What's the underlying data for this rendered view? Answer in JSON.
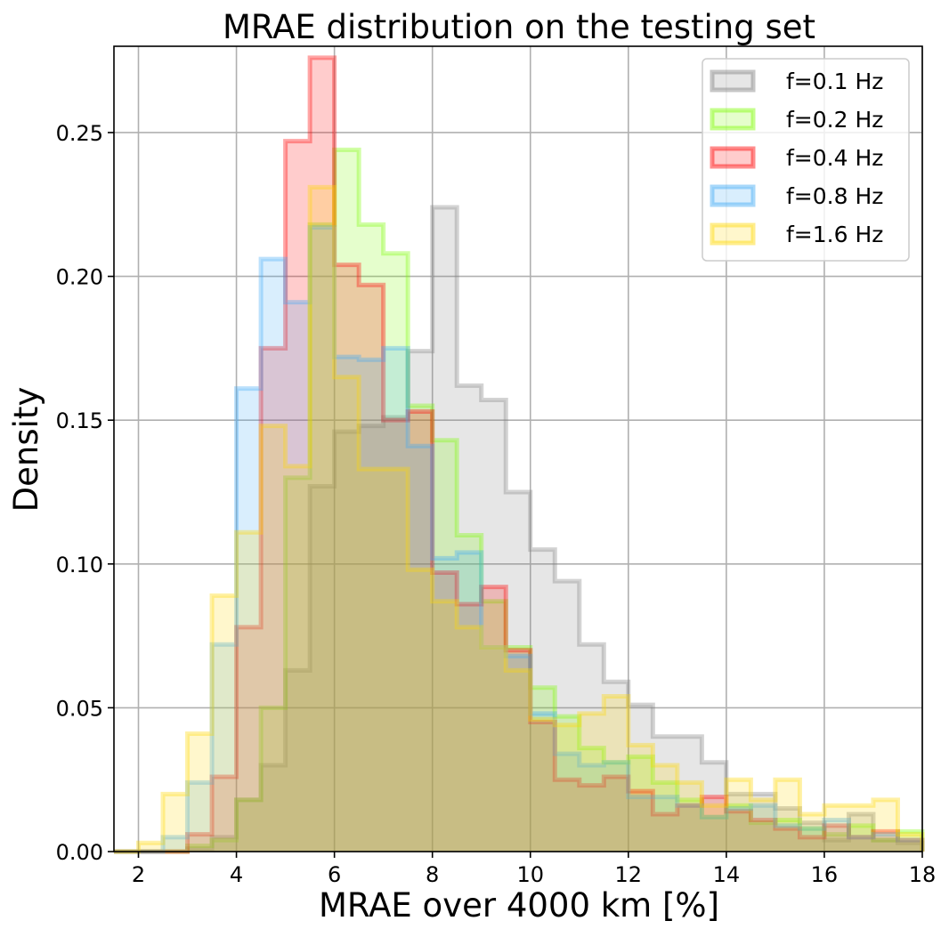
{
  "chart_data": {
    "type": "histogram",
    "title": "MRAE distribution on the testing set",
    "xlabel": "MRAE over 4000 km [%]",
    "ylabel": "Density",
    "xlim": [
      1.5,
      18
    ],
    "ylim": [
      0,
      0.28
    ],
    "xticks": [
      2,
      4,
      6,
      8,
      10,
      12,
      14,
      16,
      18
    ],
    "xtick_labels": [
      "2",
      "4",
      "6",
      "8",
      "10",
      "12",
      "14",
      "16",
      "18"
    ],
    "yticks": [
      0.0,
      0.05,
      0.1,
      0.15,
      0.2,
      0.25
    ],
    "ytick_labels": [
      "0.00",
      "0.05",
      "0.10",
      "0.15",
      "0.20",
      "0.25"
    ],
    "grid": true,
    "legend_position": "top-right",
    "bin_width": 0.5,
    "series": [
      {
        "name": "f=0.1 Hz",
        "color": "#808080",
        "edges": [
          1.5,
          2.0,
          2.5,
          3.0,
          3.5,
          4.0,
          4.5,
          5.0,
          5.5,
          6.0,
          6.5,
          7.0,
          7.5,
          8.0,
          8.5,
          9.0,
          9.5,
          10.0,
          10.5,
          11.0,
          11.5,
          12.0,
          12.5,
          13.0,
          13.5,
          14.0,
          14.5,
          15.0,
          15.5,
          16.0,
          16.5,
          17.0,
          17.5,
          18.0
        ],
        "values": [
          0.0,
          0.0,
          0.0,
          0.001,
          0.005,
          0.018,
          0.03,
          0.063,
          0.127,
          0.146,
          0.148,
          0.151,
          0.174,
          0.224,
          0.162,
          0.157,
          0.125,
          0.105,
          0.094,
          0.072,
          0.059,
          0.051,
          0.04,
          0.04,
          0.031,
          0.02,
          0.02,
          0.015,
          0.01,
          0.004,
          0.013,
          0.004,
          0.003
        ]
      },
      {
        "name": "f=0.2 Hz",
        "color": "#7cfc00",
        "edges": [
          1.5,
          2.0,
          2.5,
          3.0,
          3.5,
          4.0,
          4.5,
          5.0,
          5.5,
          6.0,
          6.5,
          7.0,
          7.5,
          8.0,
          8.5,
          9.0,
          9.5,
          10.0,
          10.5,
          11.0,
          11.5,
          12.0,
          12.5,
          13.0,
          13.5,
          14.0,
          14.5,
          15.0,
          15.5,
          16.0,
          16.5,
          17.0,
          17.5,
          18.0
        ],
        "values": [
          0.0,
          0.0,
          0.0,
          0.002,
          0.004,
          0.018,
          0.05,
          0.13,
          0.218,
          0.244,
          0.218,
          0.208,
          0.155,
          0.143,
          0.11,
          0.087,
          0.071,
          0.057,
          0.047,
          0.036,
          0.031,
          0.033,
          0.024,
          0.018,
          0.012,
          0.016,
          0.01,
          0.011,
          0.008,
          0.006,
          0.009,
          0.004,
          0.007
        ]
      },
      {
        "name": "f=0.4 Hz",
        "color": "#ff0000",
        "edges": [
          1.5,
          2.0,
          2.5,
          3.0,
          3.5,
          4.0,
          4.5,
          5.0,
          5.5,
          6.0,
          6.5,
          7.0,
          7.5,
          8.0,
          8.5,
          9.0,
          9.5,
          10.0,
          10.5,
          11.0,
          11.5,
          12.0,
          12.5,
          13.0,
          13.5,
          14.0,
          14.5,
          15.0,
          15.5,
          16.0,
          16.5,
          17.0,
          17.5,
          18.0
        ],
        "values": [
          0.0,
          0.0,
          0.0,
          0.006,
          0.026,
          0.078,
          0.175,
          0.247,
          0.276,
          0.204,
          0.197,
          0.15,
          0.153,
          0.097,
          0.086,
          0.092,
          0.07,
          0.045,
          0.025,
          0.023,
          0.026,
          0.021,
          0.013,
          0.016,
          0.019,
          0.014,
          0.011,
          0.008,
          0.005,
          0.009,
          0.005,
          0.007,
          0.004
        ]
      },
      {
        "name": "f=0.8 Hz",
        "color": "#3fa9f5",
        "edges": [
          1.5,
          2.0,
          2.5,
          3.0,
          3.5,
          4.0,
          4.5,
          5.0,
          5.5,
          6.0,
          6.5,
          7.0,
          7.5,
          8.0,
          8.5,
          9.0,
          9.5,
          10.0,
          10.5,
          11.0,
          11.5,
          12.0,
          12.5,
          13.0,
          13.5,
          14.0,
          14.5,
          15.0,
          15.5,
          16.0,
          16.5,
          17.0,
          17.5,
          18.0
        ],
        "values": [
          0.0,
          0.0,
          0.005,
          0.024,
          0.072,
          0.161,
          0.206,
          0.191,
          0.217,
          0.172,
          0.171,
          0.175,
          0.141,
          0.102,
          0.104,
          0.071,
          0.068,
          0.048,
          0.034,
          0.03,
          0.031,
          0.019,
          0.019,
          0.016,
          0.012,
          0.015,
          0.016,
          0.009,
          0.008,
          0.011,
          0.005,
          0.006,
          0.004
        ]
      },
      {
        "name": "f=1.6 Hz",
        "color": "#ffd700",
        "edges": [
          1.5,
          2.0,
          2.5,
          3.0,
          3.5,
          4.0,
          4.5,
          5.0,
          5.5,
          6.0,
          6.5,
          7.0,
          7.5,
          8.0,
          8.5,
          9.0,
          9.5,
          10.0,
          10.5,
          11.0,
          11.5,
          12.0,
          12.5,
          13.0,
          13.5,
          14.0,
          14.5,
          15.0,
          15.5,
          16.0,
          16.5,
          17.0,
          17.5,
          18.0
        ],
        "values": [
          0.0,
          0.003,
          0.02,
          0.041,
          0.089,
          0.111,
          0.148,
          0.134,
          0.231,
          0.165,
          0.133,
          0.133,
          0.098,
          0.087,
          0.078,
          0.071,
          0.063,
          0.046,
          0.044,
          0.048,
          0.054,
          0.037,
          0.03,
          0.024,
          0.016,
          0.025,
          0.018,
          0.025,
          0.013,
          0.016,
          0.016,
          0.018,
          0.006
        ]
      }
    ]
  }
}
